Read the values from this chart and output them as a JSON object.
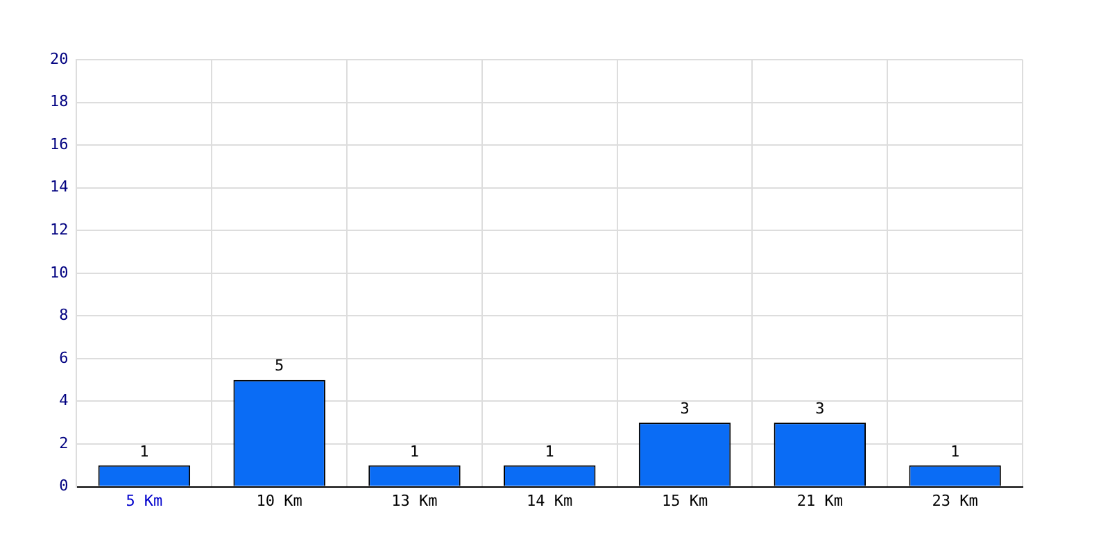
{
  "chart_data": {
    "type": "bar",
    "categories": [
      "5 Km",
      "10 Km",
      "13 Km",
      "14 Km",
      "15 Km",
      "21 Km",
      "23 Km"
    ],
    "values": [
      1,
      5,
      1,
      1,
      3,
      3,
      1
    ],
    "color": "#0a6cf5",
    "ylim": [
      0,
      20
    ],
    "yticks": [
      0,
      2,
      4,
      6,
      8,
      10,
      12,
      14,
      16,
      18,
      20
    ],
    "grid": true,
    "data_labels": true,
    "legend": false
  }
}
